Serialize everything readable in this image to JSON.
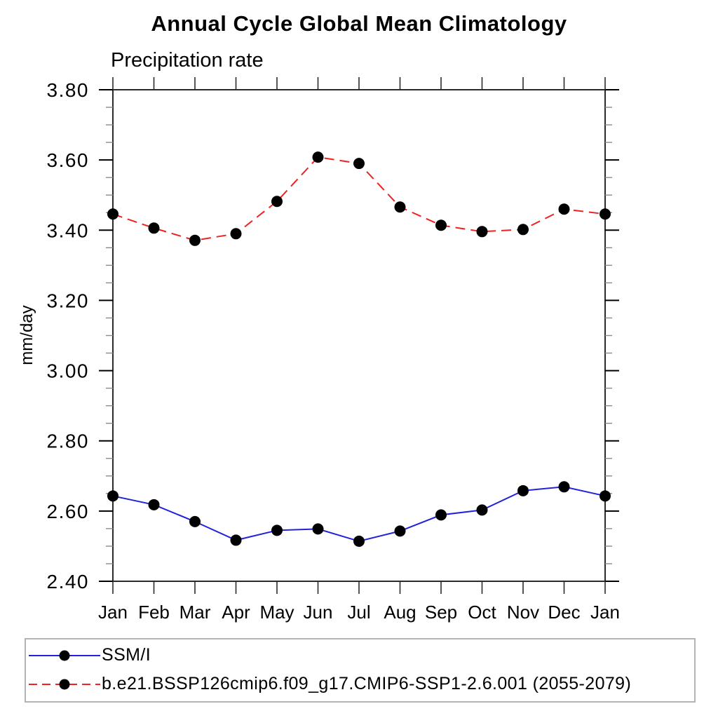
{
  "chart_data": {
    "type": "line",
    "title": "Annual Cycle Global Mean Climatology",
    "subtitle": "Precipitation rate",
    "ylabel": "mm/day",
    "xlabel": "",
    "x_categories": [
      "Jan",
      "Feb",
      "Mar",
      "Apr",
      "May",
      "Jun",
      "Jul",
      "Aug",
      "Sep",
      "Oct",
      "Nov",
      "Dec",
      "Jan"
    ],
    "ylim": [
      2.4,
      3.8
    ],
    "ytick_values": [
      3.8,
      3.6,
      3.4,
      3.2,
      3.0,
      2.8,
      2.6,
      2.4
    ],
    "ytick_labels": [
      "3.80",
      "3.60",
      "3.40",
      "3.20",
      "3.00",
      "2.80",
      "2.60",
      "2.40"
    ],
    "yminor_step": 0.05,
    "grid": false,
    "legend_position": "bottom-left-box",
    "axis_color": "#2b2b2b",
    "minor_tick_color": "#8a8a8a",
    "legend_border_color": "#b3b3b3",
    "series": [
      {
        "name": "SSM/I",
        "color": "#2222dd",
        "line_style": "solid",
        "marker": "filled-circle",
        "marker_color": "#000000",
        "values": [
          2.643,
          2.618,
          2.57,
          2.517,
          2.545,
          2.549,
          2.514,
          2.543,
          2.589,
          2.603,
          2.658,
          2.669,
          2.643
        ]
      },
      {
        "name": "b.e21.BSSP126cmip6.f09_g17.CMIP6-SSP1-2.6.001 (2055-2079)",
        "color": "#ee2222",
        "line_style": "dashed",
        "marker": "filled-circle",
        "marker_color": "#000000",
        "values": [
          3.446,
          3.406,
          3.371,
          3.39,
          3.482,
          3.608,
          3.59,
          3.466,
          3.414,
          3.396,
          3.402,
          3.46,
          3.446
        ]
      }
    ]
  }
}
